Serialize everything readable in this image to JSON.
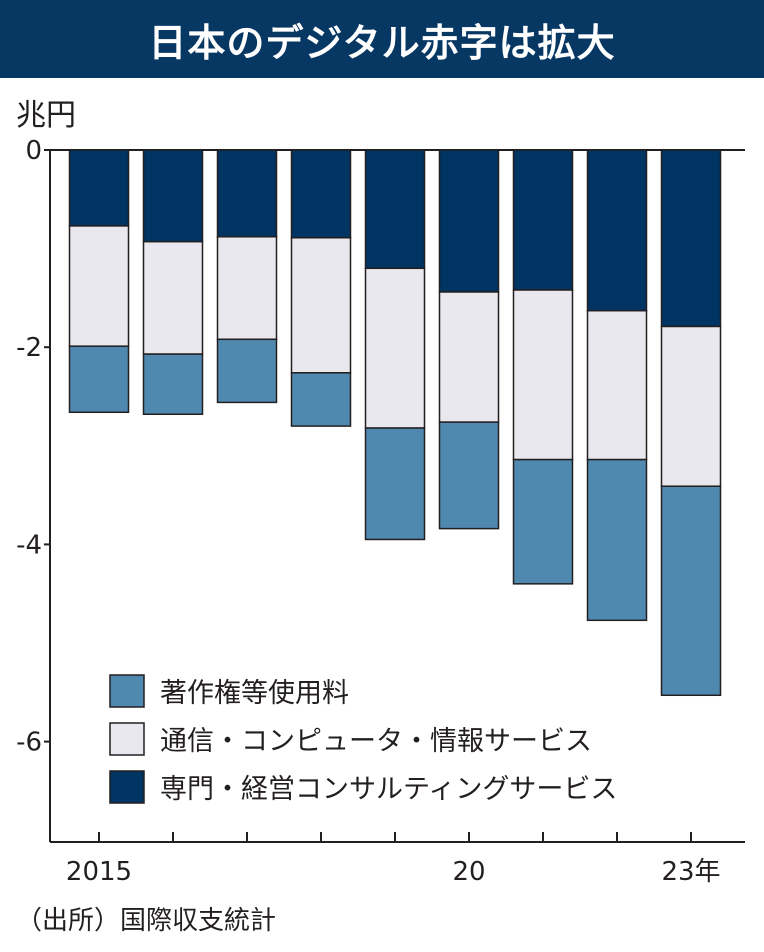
{
  "title": "日本のデジタル赤字は拡大",
  "unit": "兆円",
  "source": "（出所）国際収支統計",
  "colors": {
    "title_bg": "#073763",
    "copyright": "#5089b0",
    "telecom": "#e8e8ee",
    "professional": "#003462",
    "outline": "#231f20"
  },
  "chart_data": {
    "type": "bar",
    "stacked": true,
    "categories": [
      "2015",
      "",
      "",
      "",
      "",
      "20",
      "",
      "",
      "23年"
    ],
    "ylabel": "兆円",
    "ylim": [
      -7,
      0
    ],
    "yticks": [
      0,
      -2,
      -4,
      -6
    ],
    "ytick_labels": [
      "0",
      "-2",
      "-4",
      "-6"
    ],
    "grid": false,
    "legend_position": "lower-left",
    "series": [
      {
        "name": "専門・経営コンサルティングサービス",
        "color": "#003462",
        "values": [
          -0.77,
          -0.93,
          -0.88,
          -0.89,
          -1.2,
          -1.44,
          -1.42,
          -1.63,
          -1.79
        ]
      },
      {
        "name": "通信・コンピュータ・情報サービス",
        "color": "#e8e8ee",
        "values": [
          -1.22,
          -1.14,
          -1.04,
          -1.37,
          -1.62,
          -1.32,
          -1.72,
          -1.51,
          -1.62
        ]
      },
      {
        "name": "著作権等使用料",
        "color": "#5089b0",
        "values": [
          -0.67,
          -0.61,
          -0.64,
          -0.54,
          -1.13,
          -1.08,
          -1.26,
          -1.63,
          -2.12
        ]
      }
    ],
    "legend": [
      {
        "label": "著作権等使用料",
        "color": "#5089b0"
      },
      {
        "label": "通信・コンピュータ・情報サービス",
        "color": "#e8e8ee"
      },
      {
        "label": "専門・経営コンサルティングサービス",
        "color": "#003462"
      }
    ]
  }
}
